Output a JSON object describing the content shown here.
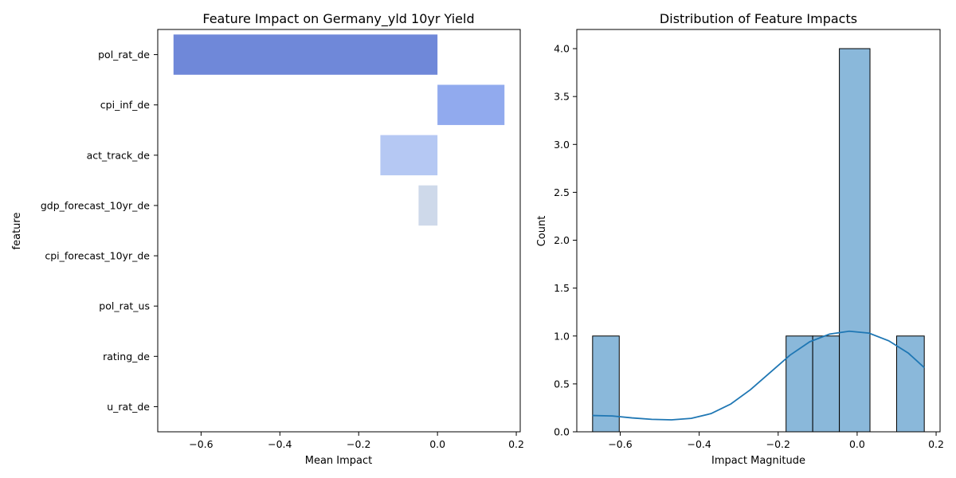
{
  "chart_data": [
    {
      "type": "bar",
      "orientation": "horizontal",
      "title": "Feature Impact on Germany_yld 10yr Yield",
      "xlabel": "Mean Impact",
      "ylabel": "feature",
      "categories": [
        "pol_rat_de",
        "cpi_inf_de",
        "act_track_de",
        "gdp_forecast_10yr_de",
        "cpi_forecast_10yr_de",
        "pol_rat_us",
        "rating_de",
        "u_rat_de"
      ],
      "values": [
        -0.67,
        0.17,
        -0.145,
        -0.048,
        0.0,
        0.0,
        0.0,
        0.0
      ],
      "colors": [
        "#6f88d9",
        "#91aaee",
        "#b5c8f3",
        "#ced9ea",
        "#dcdcdc",
        "#dcdcdc",
        "#dcdcdc",
        "#dcdcdc"
      ],
      "xlim": [
        -0.71,
        0.21
      ],
      "xticks": [
        -0.6,
        -0.4,
        -0.2,
        0.0,
        0.2
      ],
      "xtick_labels": [
        "−0.6",
        "−0.4",
        "−0.2",
        "0.0",
        "0.2"
      ],
      "grid": false
    },
    {
      "type": "histogram",
      "title": "Distribution of Feature Impacts",
      "xlabel": "Impact Magnitude",
      "ylabel": "Count",
      "bins": [
        {
          "x0": -0.67,
          "x1": -0.6025,
          "count": 1
        },
        {
          "x0": -0.6025,
          "x1": -0.535,
          "count": 0
        },
        {
          "x0": -0.535,
          "x1": -0.4675,
          "count": 0
        },
        {
          "x0": -0.4675,
          "x1": -0.4,
          "count": 0
        },
        {
          "x0": -0.4,
          "x1": -0.3325,
          "count": 0
        },
        {
          "x0": -0.3325,
          "x1": -0.265,
          "count": 0
        },
        {
          "x0": -0.265,
          "x1": -0.1975,
          "count": 0
        },
        {
          "x0": -0.18,
          "x1": -0.1125,
          "count": 1
        },
        {
          "x0": -0.1125,
          "x1": -0.045,
          "count": 1
        },
        {
          "x0": -0.045,
          "x1": 0.0325,
          "count": 4
        },
        {
          "x0": 0.0325,
          "x1": 0.1,
          "count": 0
        },
        {
          "x0": 0.1,
          "x1": 0.17,
          "count": 1
        }
      ],
      "bar_color": "#8ab8da",
      "kde": {
        "color": "#1f77b4",
        "x": [
          -0.67,
          -0.62,
          -0.57,
          -0.52,
          -0.47,
          -0.42,
          -0.37,
          -0.32,
          -0.27,
          -0.22,
          -0.17,
          -0.12,
          -0.07,
          -0.02,
          0.03,
          0.08,
          0.13,
          0.17
        ],
        "y": [
          0.17,
          0.165,
          0.145,
          0.13,
          0.125,
          0.14,
          0.19,
          0.29,
          0.44,
          0.62,
          0.8,
          0.94,
          1.02,
          1.05,
          1.03,
          0.95,
          0.82,
          0.67
        ]
      },
      "xlim": [
        -0.71,
        0.21
      ],
      "ylim": [
        0,
        4.2
      ],
      "xticks": [
        -0.6,
        -0.4,
        -0.2,
        0.0,
        0.2
      ],
      "xtick_labels": [
        "−0.6",
        "−0.4",
        "−0.2",
        "0.0",
        "0.2"
      ],
      "yticks": [
        0.0,
        0.5,
        1.0,
        1.5,
        2.0,
        2.5,
        3.0,
        3.5,
        4.0
      ],
      "ytick_labels": [
        "0.0",
        "0.5",
        "1.0",
        "1.5",
        "2.0",
        "2.5",
        "3.0",
        "3.5",
        "4.0"
      ],
      "grid": false
    }
  ]
}
